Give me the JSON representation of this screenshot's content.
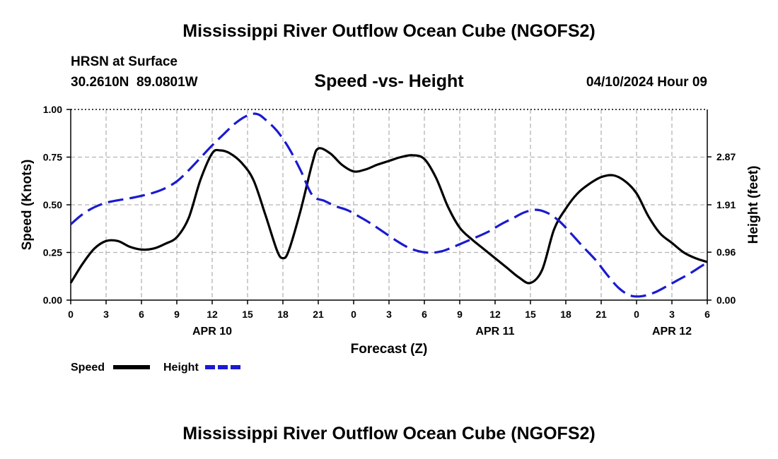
{
  "title": "Mississippi River Outflow Ocean Cube (NGOFS2)",
  "station": "HRSN at Surface",
  "coords": "30.2610N  89.0801W",
  "subtitle": "Speed -vs- Height",
  "timestamp": "04/10/2024 Hour 09",
  "footer_title": "Mississippi River Outflow Ocean Cube (NGOFS2)",
  "colors": {
    "speed": "#000000",
    "height": "#1a1ad0",
    "grid": "#b4b4b4"
  },
  "chart_data": {
    "type": "line",
    "title": "Speed -vs- Height",
    "xlabel": "Forecast (Z)",
    "ylabel": "Speed (Knots)",
    "y2label": "Height (feet)",
    "xlim": [
      0,
      54
    ],
    "ylim": [
      0,
      1.0
    ],
    "y2lim": [
      0,
      3.82
    ],
    "xticks": [
      0,
      3,
      6,
      9,
      12,
      15,
      18,
      21,
      24,
      27,
      30,
      33,
      36,
      39,
      42,
      45,
      48,
      51,
      54
    ],
    "xtick_labels": [
      "0",
      "3",
      "6",
      "9",
      "12",
      "15",
      "18",
      "21",
      "0",
      "3",
      "6",
      "9",
      "12",
      "15",
      "18",
      "21",
      "0",
      "3",
      "6"
    ],
    "yticks": [
      0.0,
      0.25,
      0.5,
      0.75,
      1.0
    ],
    "ytick_labels": [
      "0.00",
      "0.25",
      "0.50",
      "0.75",
      "1.00"
    ],
    "y2ticks": [
      0.0,
      0.96,
      1.91,
      2.87
    ],
    "y2tick_labels": [
      "0.00",
      "0.96",
      "1.91",
      "2.87"
    ],
    "date_labels": [
      {
        "x": 12,
        "label": "APR 10"
      },
      {
        "x": 36,
        "label": "APR 11"
      },
      {
        "x": 51,
        "label": "APR 12"
      }
    ],
    "legend_position": "bottom-left",
    "series": [
      {
        "name": "Speed",
        "axis": "left",
        "style": "solid",
        "x": [
          0,
          1,
          2,
          3,
          4,
          5,
          6,
          7,
          8,
          9,
          10,
          11,
          12,
          12.7,
          13.5,
          14.5,
          15.5,
          16.5,
          17.5,
          18,
          18.5,
          19.5,
          20.5,
          21,
          22,
          23,
          24,
          25,
          26,
          27,
          28,
          29,
          30,
          31,
          32,
          33,
          34,
          35,
          36,
          37,
          38,
          39,
          40,
          41,
          42,
          43,
          44,
          45,
          46,
          47,
          48,
          49,
          50,
          51,
          52,
          53,
          54
        ],
        "values": [
          0.09,
          0.19,
          0.27,
          0.31,
          0.31,
          0.28,
          0.265,
          0.27,
          0.295,
          0.33,
          0.43,
          0.63,
          0.77,
          0.785,
          0.77,
          0.72,
          0.63,
          0.45,
          0.26,
          0.22,
          0.26,
          0.47,
          0.72,
          0.795,
          0.77,
          0.71,
          0.675,
          0.685,
          0.71,
          0.73,
          0.75,
          0.76,
          0.74,
          0.64,
          0.49,
          0.38,
          0.32,
          0.27,
          0.22,
          0.17,
          0.12,
          0.09,
          0.16,
          0.37,
          0.48,
          0.56,
          0.61,
          0.645,
          0.655,
          0.625,
          0.56,
          0.44,
          0.35,
          0.3,
          0.25,
          0.22,
          0.2
        ]
      },
      {
        "name": "Height",
        "axis": "right",
        "style": "dashed",
        "x": [
          0,
          1,
          2,
          3,
          4,
          5,
          6,
          7,
          8,
          9,
          10,
          11,
          12,
          13,
          14,
          15,
          15.8,
          16.5,
          17.5,
          18.5,
          19.5,
          20.5,
          21.5,
          22.5,
          23.5,
          24.5,
          25.5,
          26.5,
          27.5,
          28.5,
          29.5,
          30.5,
          31.5,
          32.5,
          33.5,
          34.5,
          35.5,
          36.5,
          37.5,
          38.5,
          39.5,
          40.5,
          41.5,
          42.5,
          43.5,
          44.5,
          45.5,
          46.5,
          47.5,
          48.5,
          49.5,
          50.5,
          51.5,
          52.5,
          53.5,
          54
        ],
        "values": [
          1.52,
          1.72,
          1.86,
          1.95,
          2.0,
          2.04,
          2.09,
          2.15,
          2.24,
          2.38,
          2.6,
          2.85,
          3.1,
          3.33,
          3.55,
          3.7,
          3.73,
          3.62,
          3.39,
          3.05,
          2.6,
          2.1,
          1.99,
          1.88,
          1.8,
          1.67,
          1.53,
          1.37,
          1.21,
          1.07,
          0.98,
          0.95,
          0.98,
          1.07,
          1.17,
          1.27,
          1.38,
          1.52,
          1.64,
          1.76,
          1.81,
          1.74,
          1.57,
          1.32,
          1.06,
          0.81,
          0.51,
          0.24,
          0.09,
          0.08,
          0.15,
          0.27,
          0.4,
          0.53,
          0.68,
          0.75
        ]
      }
    ]
  }
}
